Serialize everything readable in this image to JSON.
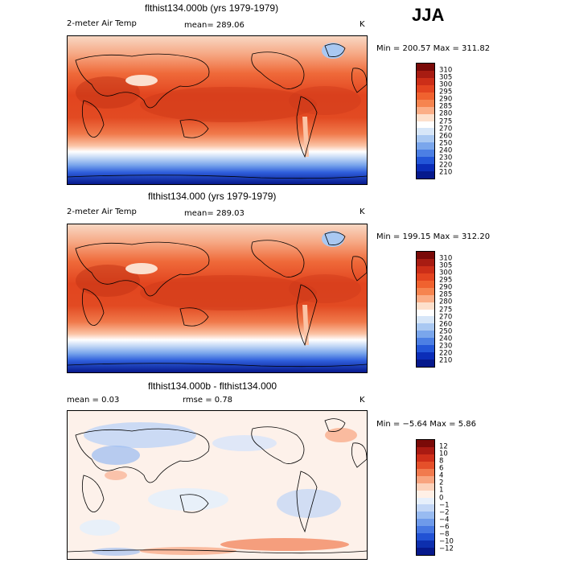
{
  "season": "JJA",
  "panels": [
    {
      "id": "p1",
      "title": "flthist134.000b (yrs 1979-1979)",
      "left_label": "2-meter Air Temp",
      "mid_label": "mean= 289.06",
      "units": "K",
      "minmax": "Min = 200.57 Max = 311.82"
    },
    {
      "id": "p2",
      "title": "flthist134.000 (yrs 1979-1979)",
      "left_label": "2-meter Air Temp",
      "mid_label": "mean= 289.03",
      "units": "K",
      "minmax": "Min = 199.15 Max = 312.20"
    },
    {
      "id": "p3",
      "title": "flthist134.000b - flthist134.000",
      "left_label": "mean =    0.03",
      "mid_label": "rmse =    0.78",
      "units": "K",
      "minmax": "Min =  −5.64 Max =   5.86"
    }
  ],
  "temp_colorbar": {
    "labels": [
      "310",
      "305",
      "300",
      "295",
      "290",
      "285",
      "280",
      "275",
      "270",
      "260",
      "250",
      "240",
      "230",
      "220",
      "210"
    ],
    "colors": [
      "#7a0a08",
      "#a81c12",
      "#cc2e18",
      "#e34420",
      "#f0622f",
      "#f6844f",
      "#fbae87",
      "#fde0cc",
      "#ffffff",
      "#d7e6f8",
      "#a9c8f2",
      "#7aa6ec",
      "#4c7fe4",
      "#2356d8",
      "#0b2db8",
      "#06198c"
    ]
  },
  "diff_colorbar": {
    "labels": [
      "12",
      "10",
      "8",
      "6",
      "4",
      "2",
      "1",
      "0",
      "−1",
      "−2",
      "−4",
      "−6",
      "−8",
      "−10",
      "−12"
    ],
    "colors": [
      "#7a0a08",
      "#aa1a12",
      "#cf2f1a",
      "#e5502a",
      "#f17a4e",
      "#f8a47f",
      "#fcd2bb",
      "#fff0e6",
      "#e6effb",
      "#c2d6f6",
      "#98bbf1",
      "#6e9aea",
      "#4677e2",
      "#2252d4",
      "#0d2fae",
      "#06198c"
    ]
  }
}
